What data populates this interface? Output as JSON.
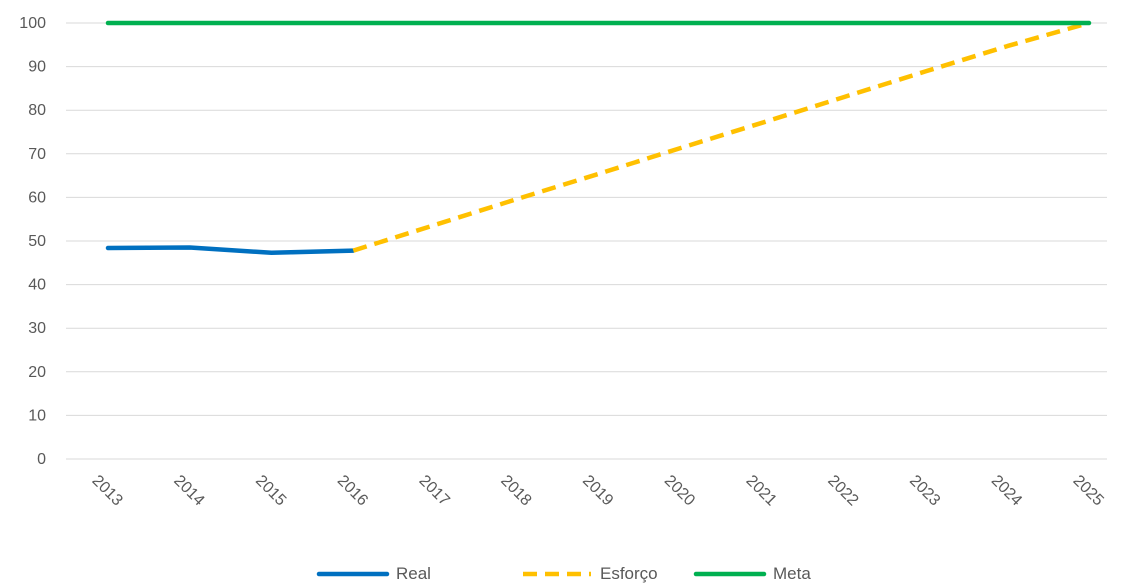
{
  "chart_data": {
    "type": "line",
    "title": "",
    "xlabel": "",
    "ylabel": "",
    "x": [
      "2013",
      "2014",
      "2015",
      "2016",
      "2017",
      "2018",
      "2019",
      "2020",
      "2021",
      "2022",
      "2023",
      "2024",
      "2025"
    ],
    "ylim": [
      0,
      100
    ],
    "yticks": [
      0,
      10,
      20,
      30,
      40,
      50,
      60,
      70,
      80,
      90,
      100
    ],
    "grid": "horizontal",
    "legend_position": "bottom",
    "series": [
      {
        "name": "Real",
        "color": "#0070c0",
        "style": "solid",
        "values": [
          48.4,
          48.5,
          47.3,
          47.8,
          null,
          null,
          null,
          null,
          null,
          null,
          null,
          null,
          null
        ]
      },
      {
        "name": "Esforço",
        "color": "#ffc000",
        "style": "dashed",
        "values": [
          null,
          null,
          null,
          47.8,
          53.7,
          59.6,
          65.4,
          71.3,
          77.1,
          83.0,
          88.9,
          94.7,
          100.0
        ]
      },
      {
        "name": "Meta",
        "color": "#00b050",
        "style": "solid",
        "values": [
          100,
          100,
          100,
          100,
          100,
          100,
          100,
          100,
          100,
          100,
          100,
          100,
          100
        ]
      }
    ]
  }
}
